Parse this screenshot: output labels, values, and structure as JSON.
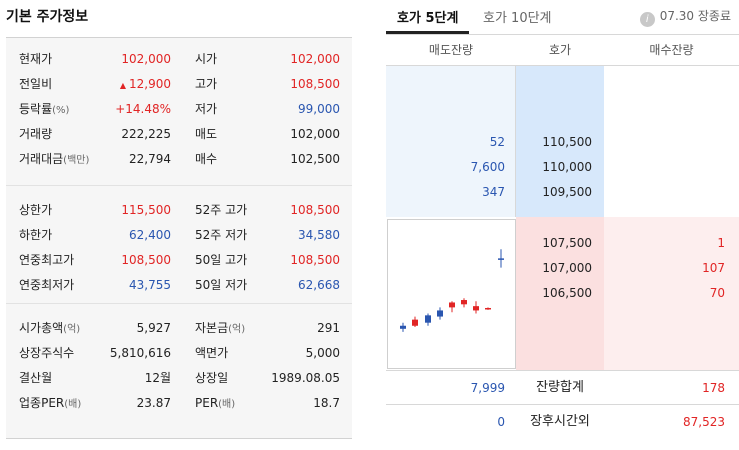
{
  "basic": {
    "title": "기본 주가정보",
    "group1": [
      {
        "l1": "현재가",
        "u1": "",
        "v1": "102,000",
        "c1": "red",
        "l2": "시가",
        "u2": "",
        "v2": "102,000",
        "c2": "red"
      },
      {
        "l1": "전일비",
        "u1": "",
        "v1": "12,900",
        "c1": "red",
        "l2": "고가",
        "u2": "",
        "v2": "108,500",
        "c2": "red"
      },
      {
        "l1": "등락률",
        "u1": "(%)",
        "v1": "+14.48%",
        "c1": "red",
        "l2": "저가",
        "u2": "",
        "v2": "99,000",
        "c2": "blue"
      },
      {
        "l1": "거래량",
        "u1": "",
        "v1": "222,225",
        "c1": "",
        "l2": "매도",
        "u2": "",
        "v2": "102,000",
        "c2": ""
      },
      {
        "l1": "거래대금",
        "u1": "(백만)",
        "v1": "22,794",
        "c1": "",
        "l2": "매수",
        "u2": "",
        "v2": "102,500",
        "c2": ""
      }
    ],
    "group2": [
      {
        "l1": "상한가",
        "u1": "",
        "v1": "115,500",
        "c1": "red",
        "l2": "52주 고가",
        "u2": "",
        "v2": "108,500",
        "c2": "red"
      },
      {
        "l1": "하한가",
        "u1": "",
        "v1": "62,400",
        "c1": "blue",
        "l2": "52주 저가",
        "u2": "",
        "v2": "34,580",
        "c2": "blue"
      },
      {
        "l1": "연중최고가",
        "u1": "",
        "v1": "108,500",
        "c1": "red",
        "l2": "50일 고가",
        "u2": "",
        "v2": "108,500",
        "c2": "red"
      },
      {
        "l1": "연중최저가",
        "u1": "",
        "v1": "43,755",
        "c1": "blue",
        "l2": "50일 저가",
        "u2": "",
        "v2": "62,668",
        "c2": "blue"
      }
    ],
    "group3": [
      {
        "l1": "시가총액",
        "u1": "(억)",
        "v1": "5,927",
        "c1": "",
        "l2": "자본금",
        "u2": "(억)",
        "v2": "291",
        "c2": ""
      },
      {
        "l1": "상장주식수",
        "u1": "",
        "v1": "5,810,616",
        "c1": "",
        "l2": "액면가",
        "u2": "",
        "v2": "5,000",
        "c2": ""
      },
      {
        "l1": "결산월",
        "u1": "",
        "v1": "12월",
        "c1": "",
        "l2": "상장일",
        "u2": "",
        "v2": "1989.08.05",
        "c2": ""
      },
      {
        "l1": "업종PER",
        "u1": "(배)",
        "v1": "23.87",
        "c1": "",
        "l2": "PER",
        "u2": "(배)",
        "v2": "18.7",
        "c2": ""
      }
    ]
  },
  "orderbook": {
    "tabs": [
      "호가 5단계",
      "호가 10단계"
    ],
    "status": "07.30 장종료",
    "info_icon_glyph": "i",
    "headers": {
      "ask": "매도잔량",
      "price": "호가",
      "bid": "매수잔량"
    },
    "asks": [
      {
        "qty": "52",
        "price": "110,500"
      },
      {
        "qty": "7,600",
        "price": "110,000"
      },
      {
        "qty": "347",
        "price": "109,500"
      }
    ],
    "bids": [
      {
        "price": "107,500",
        "qty": "1"
      },
      {
        "price": "107,000",
        "qty": "107"
      },
      {
        "price": "106,500",
        "qty": "70"
      }
    ],
    "total": {
      "ask": "7,999",
      "label": "잔량합계",
      "bid": "178"
    },
    "after": {
      "ask": "0",
      "label": "장후시간외",
      "bid": "87,523"
    },
    "colors": {
      "up": "#e12525",
      "down": "#2a56b0"
    }
  },
  "candles": [
    {
      "open": 101500,
      "high": 102500,
      "low": 101000,
      "close": 102000,
      "up": false
    },
    {
      "open": 102000,
      "high": 103500,
      "low": 101800,
      "close": 103000,
      "up": true
    },
    {
      "open": 102500,
      "high": 104000,
      "low": 102000,
      "close": 103700,
      "up": false
    },
    {
      "open": 103500,
      "high": 105000,
      "low": 103000,
      "close": 104500,
      "up": false
    },
    {
      "open": 105000,
      "high": 106000,
      "low": 104200,
      "close": 105800,
      "up": true
    },
    {
      "open": 105500,
      "high": 106500,
      "low": 105000,
      "close": 106200,
      "up": true
    },
    {
      "open": 104500,
      "high": 106000,
      "low": 104000,
      "close": 105200,
      "up": true
    },
    {
      "open": 104800,
      "high": 105000,
      "low": 104600,
      "close": 104900,
      "up": true
    },
    {
      "open": 113000,
      "high": 114500,
      "low": 111500,
      "close": 113000,
      "up": false
    }
  ]
}
